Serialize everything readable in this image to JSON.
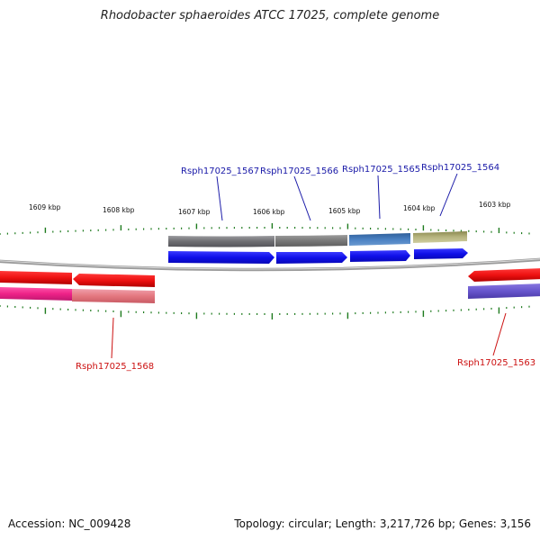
{
  "title": "Rhodobacter sphaeroides ATCC 17025, complete genome",
  "footer": {
    "accession": "Accession: NC_009428",
    "summary": "Topology: circular; Length: 3,217,726 bp; Genes: 3,156"
  },
  "scale_labels": [
    "1609 kbp",
    "1608 kbp",
    "1607 kbp",
    "1606 kbp",
    "1605 kbp",
    "1604 kbp",
    "1603 kbp"
  ],
  "genes": {
    "top": [
      "Rsph17025_1567",
      "Rsph17025_1566",
      "Rsph17025_1565",
      "Rsph17025_1564"
    ],
    "bottom": [
      "Rsph17025_1568",
      "Rsph17025_1563"
    ]
  },
  "colors": {
    "forward_label": "#1a1aa8",
    "reverse_label": "#cc1111",
    "cds_forward": "#1111ee",
    "cds_reverse": "#ee1111",
    "tick": "#1d7a1d",
    "backbone": "#888888",
    "feature_gray": "#6e6e72",
    "feature_steel": "#4a7fc0",
    "feature_olive": "#b2b07a",
    "feature_pink": "#ee2288",
    "feature_purple": "#6655cc"
  }
}
